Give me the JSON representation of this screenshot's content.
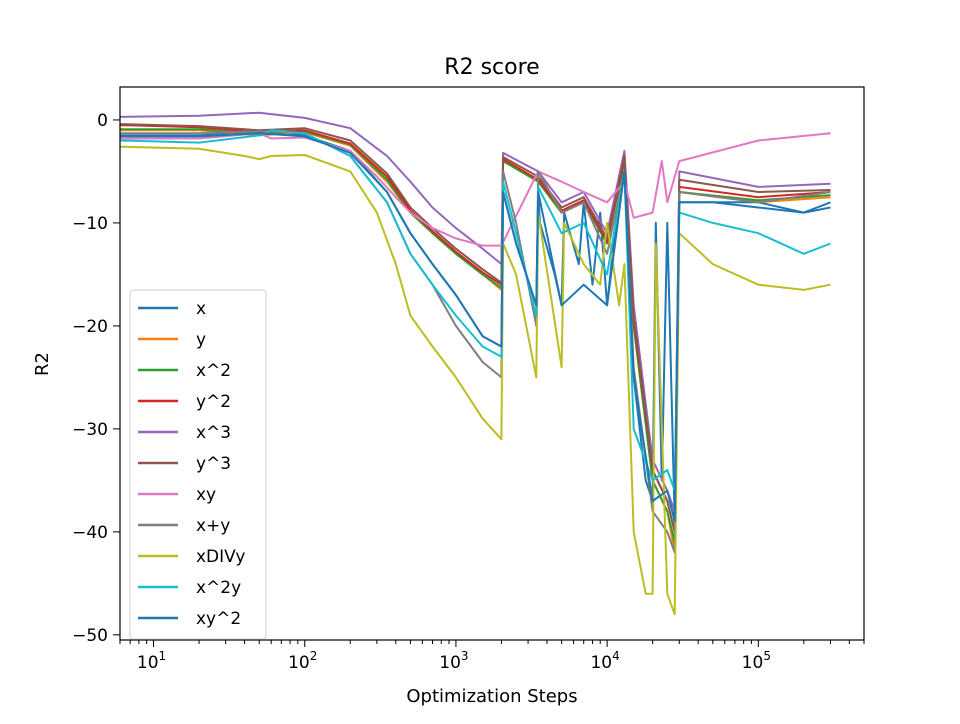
{
  "chart_data": {
    "type": "line",
    "title": "R2 score",
    "xlabel": "Optimization Steps",
    "ylabel": "R2",
    "xscale": "log",
    "xlim": [
      6,
      500000
    ],
    "ylim": [
      -50.5,
      3.2
    ],
    "xticks": [
      {
        "value": 10,
        "base": "10",
        "exp": "1"
      },
      {
        "value": 100,
        "base": "10",
        "exp": "2"
      },
      {
        "value": 1000,
        "base": "10",
        "exp": "3"
      },
      {
        "value": 10000,
        "base": "10",
        "exp": "4"
      },
      {
        "value": 100000,
        "base": "10",
        "exp": "5"
      }
    ],
    "yticks": [
      {
        "value": 0,
        "label": "0"
      },
      {
        "value": -10,
        "label": "−10"
      },
      {
        "value": -20,
        "label": "−20"
      },
      {
        "value": -30,
        "label": "−30"
      },
      {
        "value": -40,
        "label": "−40"
      },
      {
        "value": -50,
        "label": "−50"
      }
    ],
    "grid": false,
    "legend_position": "lower left",
    "series": [
      {
        "name": "x",
        "color": "#1f77b4",
        "x": [
          6,
          20,
          50,
          100,
          200,
          350,
          500,
          700,
          1000,
          1500,
          2000,
          2050,
          2500,
          3400,
          3500,
          3600,
          4500,
          5000,
          5200,
          6500,
          7000,
          8000,
          9000,
          10000,
          12000,
          13000,
          15000,
          18000,
          20000,
          21000,
          23000,
          25000,
          28000,
          30000,
          50000,
          100000,
          200000,
          300000
        ],
        "y": [
          -1.5,
          -1.5,
          -1.2,
          -1.5,
          -3,
          -7,
          -11,
          -14,
          -17,
          -21,
          -22,
          -7,
          -12,
          -18,
          -7,
          -10,
          -15,
          -18,
          -9,
          -14,
          -8,
          -16,
          -9,
          -18,
          -7,
          -5,
          -25,
          -35,
          -37,
          -10,
          -35,
          -10,
          -39,
          -8,
          -8,
          -8,
          -9,
          -8.5
        ]
      },
      {
        "name": "y",
        "color": "#ff7f0e",
        "x": [
          6,
          20,
          50,
          100,
          200,
          350,
          500,
          700,
          1000,
          1500,
          2000,
          2050,
          3500,
          5000,
          7000,
          10000,
          13000,
          15000,
          20000,
          25000,
          28000,
          30000,
          100000,
          300000
        ],
        "y": [
          -1,
          -1,
          -1.5,
          -1.2,
          -2.5,
          -6,
          -9,
          -11,
          -13,
          -15,
          -16.5,
          -4,
          -6,
          -9,
          -8,
          -12,
          -4,
          -20,
          -35,
          -38,
          -42,
          -7,
          -8,
          -7.5
        ]
      },
      {
        "name": "x^2",
        "color": "#2ca02c",
        "x": [
          6,
          20,
          50,
          100,
          200,
          350,
          500,
          700,
          1000,
          1500,
          2000,
          2050,
          3500,
          5000,
          7000,
          10000,
          13000,
          15000,
          20000,
          25000,
          28000,
          30000,
          100000,
          300000
        ],
        "y": [
          -0.9,
          -0.9,
          -1.4,
          -1.1,
          -2.4,
          -5.8,
          -9,
          -11,
          -13,
          -15,
          -16.3,
          -4,
          -6,
          -9,
          -8,
          -12,
          -4,
          -20,
          -35,
          -38,
          -41,
          -7,
          -7.8,
          -7.3
        ]
      },
      {
        "name": "y^2",
        "color": "#d62728",
        "x": [
          6,
          20,
          50,
          100,
          200,
          350,
          500,
          700,
          1000,
          1500,
          2000,
          2050,
          3500,
          5000,
          7000,
          10000,
          13000,
          15000,
          20000,
          25000,
          28000,
          30000,
          100000,
          300000
        ],
        "y": [
          -0.5,
          -0.7,
          -1.2,
          -1,
          -2.3,
          -5.5,
          -8.8,
          -10.8,
          -12.8,
          -14.8,
          -16,
          -3.8,
          -5.8,
          -8.8,
          -7.8,
          -11.8,
          -3.8,
          -19.5,
          -34,
          -37,
          -40,
          -6.5,
          -7.5,
          -7
        ]
      },
      {
        "name": "x^3",
        "color": "#9467bd",
        "x": [
          6,
          20,
          50,
          100,
          200,
          350,
          500,
          700,
          1000,
          1500,
          2000,
          2050,
          3500,
          5000,
          7000,
          10000,
          13000,
          15000,
          20000,
          25000,
          28000,
          30000,
          100000,
          300000
        ],
        "y": [
          0.3,
          0.4,
          0.7,
          0.2,
          -0.8,
          -3.5,
          -6,
          -8.5,
          -10.5,
          -12.5,
          -14,
          -3.2,
          -5,
          -8,
          -7,
          -11,
          -3,
          -18,
          -33,
          -36,
          -38,
          -5,
          -6.5,
          -6.2
        ]
      },
      {
        "name": "y^3",
        "color": "#8c564b",
        "x": [
          6,
          20,
          50,
          100,
          200,
          350,
          500,
          700,
          1000,
          1500,
          2000,
          2050,
          3500,
          5000,
          7000,
          10000,
          13000,
          15000,
          20000,
          25000,
          28000,
          30000,
          100000,
          300000
        ],
        "y": [
          -0.4,
          -0.6,
          -1,
          -0.8,
          -2,
          -5.2,
          -8.5,
          -10.5,
          -12.5,
          -14.5,
          -15.8,
          -3.6,
          -5.5,
          -8.5,
          -7.5,
          -11.5,
          -3.5,
          -19,
          -34,
          -37,
          -40,
          -5.8,
          -7,
          -6.8
        ]
      },
      {
        "name": "xy",
        "color": "#e377c2",
        "x": [
          6,
          20,
          50,
          60,
          100,
          200,
          300,
          400,
          500,
          700,
          1000,
          1500,
          2000,
          3500,
          5000,
          7000,
          10000,
          13000,
          15000,
          20000,
          23000,
          25000,
          30000,
          100000,
          300000
        ],
        "y": [
          -1.8,
          -1.8,
          -1.3,
          -1.8,
          -1.7,
          -3,
          -5.5,
          -7.5,
          -9,
          -10.5,
          -11.5,
          -12.2,
          -12.2,
          -5,
          -6,
          -7,
          -8,
          -6,
          -9.5,
          -9,
          -4,
          -8,
          -4,
          -2,
          -1.3
        ]
      },
      {
        "name": "x+y",
        "color": "#7f7f7f",
        "x": [
          6,
          20,
          50,
          100,
          200,
          350,
          500,
          700,
          1000,
          1500,
          2000,
          2050,
          2500,
          3400,
          3500,
          5000,
          7000,
          10000,
          13000,
          15000,
          20000,
          25000,
          28000,
          30000,
          100000,
          300000
        ],
        "y": [
          -1.3,
          -1.3,
          -1.1,
          -1.3,
          -3.5,
          -8,
          -13,
          -16,
          -20,
          -23.5,
          -25,
          -5,
          -10,
          -20,
          -5,
          -9,
          -8,
          -13,
          -5,
          -24,
          -38,
          -40,
          -42,
          -7,
          -8,
          -7
        ]
      },
      {
        "name": "xDIVy",
        "color": "#bcbd22",
        "x": [
          6,
          20,
          40,
          50,
          60,
          100,
          200,
          300,
          400,
          500,
          700,
          1000,
          1500,
          2000,
          2050,
          2500,
          3400,
          3500,
          5000,
          5200,
          7000,
          9000,
          10000,
          12000,
          13000,
          15000,
          18000,
          20000,
          21000,
          25000,
          28000,
          30000,
          50000,
          100000,
          200000,
          300000
        ],
        "y": [
          -2.6,
          -2.8,
          -3.5,
          -3.8,
          -3.5,
          -3.4,
          -5,
          -9,
          -14,
          -19,
          -22,
          -25,
          -29,
          -31,
          -12,
          -15,
          -25,
          -9,
          -24,
          -10,
          -14,
          -16,
          -10,
          -18,
          -14,
          -40,
          -46,
          -46,
          -12,
          -46,
          -48,
          -11,
          -14,
          -16,
          -16.5,
          -16
        ]
      },
      {
        "name": "x^2y",
        "color": "#17becf",
        "x": [
          6,
          20,
          50,
          60,
          100,
          200,
          350,
          500,
          700,
          1000,
          1500,
          2000,
          2050,
          2500,
          3400,
          3500,
          5000,
          7000,
          10000,
          13000,
          15000,
          20000,
          25000,
          28000,
          30000,
          50000,
          100000,
          200000,
          300000
        ],
        "y": [
          -2,
          -2.2,
          -1.5,
          -1,
          -1.3,
          -3.5,
          -8,
          -13,
          -16,
          -19,
          -22,
          -23,
          -6,
          -11,
          -19,
          -6.5,
          -11,
          -10,
          -15,
          -5,
          -30,
          -35,
          -34,
          -36,
          -9,
          -10,
          -11,
          -13,
          -12
        ]
      },
      {
        "name": "xy^2",
        "color": "#1f77b4",
        "x": [
          6,
          20,
          50,
          100,
          200,
          350,
          500,
          700,
          1000,
          1500,
          2000,
          2050,
          2500,
          3400,
          3500,
          5000,
          7000,
          10000,
          13000,
          15000,
          20000,
          25000,
          28000,
          30000,
          50000,
          100000,
          200000,
          300000
        ],
        "y": [
          -1.6,
          -1.6,
          -1.3,
          -1.6,
          -3.2,
          -7,
          -11,
          -14,
          -17,
          -21,
          -22,
          -7,
          -12,
          -18,
          -7,
          -18,
          -16,
          -18,
          -5,
          -25,
          -37,
          -36,
          -39,
          -8,
          -8,
          -8.5,
          -9,
          -8
        ]
      }
    ]
  }
}
